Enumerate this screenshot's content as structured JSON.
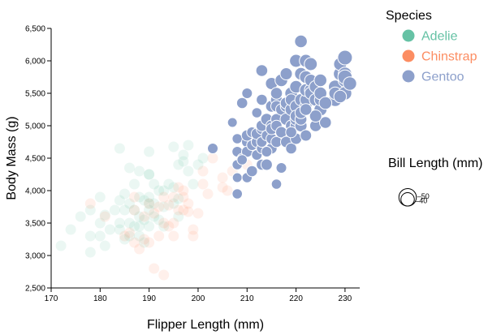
{
  "chart_data": {
    "type": "scatter",
    "xlabel": "Flipper Length (mm)",
    "ylabel": "Body Mass (g)",
    "xlim": [
      170,
      233
    ],
    "ylim": [
      2500,
      6500
    ],
    "xticks": [
      "170",
      "180",
      "190",
      "200",
      "210",
      "220",
      "230"
    ],
    "yticks": [
      "2,500",
      "3,000",
      "3,500",
      "4,000",
      "4,500",
      "5,000",
      "5,500",
      "6,000",
      "6,500"
    ],
    "legend": {
      "title": "Species",
      "placement": "top-right",
      "items": [
        {
          "label": "Adelie",
          "color": "#66c2a5"
        },
        {
          "label": "Chinstrap",
          "color": "#fc8d62"
        },
        {
          "label": "Gentoo",
          "color": "#8da0cb"
        }
      ]
    },
    "size_legend": {
      "title": "Bill Length (mm)",
      "values": [
        50,
        40
      ],
      "labels": [
        "50",
        "40"
      ]
    },
    "highlighted_series": "Gentoo",
    "series": [
      {
        "name": "Adelie",
        "color": "#66c2a5",
        "points": [
          [
            172,
            3150,
            37
          ],
          [
            174,
            3400,
            38
          ],
          [
            176,
            3600,
            38
          ],
          [
            178,
            3300,
            39
          ],
          [
            178,
            3050,
            37
          ],
          [
            178,
            3700,
            38
          ],
          [
            180,
            3900,
            40
          ],
          [
            180,
            3500,
            38
          ],
          [
            180,
            3300,
            37
          ],
          [
            181,
            3625,
            38
          ],
          [
            181,
            3150,
            37
          ],
          [
            182,
            3400,
            39
          ],
          [
            183,
            3700,
            37
          ],
          [
            184,
            3850,
            40
          ],
          [
            184,
            3500,
            39
          ],
          [
            184,
            4650,
            38
          ],
          [
            185,
            3700,
            40
          ],
          [
            185,
            3950,
            39
          ],
          [
            185,
            3250,
            36
          ],
          [
            186,
            3800,
            41
          ],
          [
            186,
            3500,
            38
          ],
          [
            186,
            4350,
            40
          ],
          [
            186,
            3300,
            39
          ],
          [
            187,
            4100,
            40
          ],
          [
            187,
            3700,
            38
          ],
          [
            187,
            3450,
            39
          ],
          [
            188,
            3600,
            38
          ],
          [
            188,
            3900,
            41
          ],
          [
            188,
            3300,
            38
          ],
          [
            188,
            3450,
            39
          ],
          [
            189,
            3550,
            38
          ],
          [
            189,
            3850,
            40
          ],
          [
            189,
            3200,
            37
          ],
          [
            190,
            3900,
            40
          ],
          [
            190,
            4250,
            41
          ],
          [
            190,
            3800,
            40
          ],
          [
            190,
            3450,
            37
          ],
          [
            190,
            4600,
            39
          ],
          [
            190,
            3700,
            38
          ],
          [
            190,
            4250,
            37
          ],
          [
            191,
            3800,
            39
          ],
          [
            191,
            4100,
            40
          ],
          [
            191,
            3600,
            39
          ],
          [
            192,
            4000,
            40
          ],
          [
            192,
            3550,
            38
          ],
          [
            193,
            3750,
            39
          ],
          [
            193,
            4000,
            41
          ],
          [
            194,
            4100,
            39
          ],
          [
            195,
            4050,
            40
          ],
          [
            195,
            3800,
            39
          ],
          [
            195,
            4675,
            42
          ],
          [
            196,
            3875,
            41
          ],
          [
            196,
            4400,
            39
          ],
          [
            197,
            4450,
            40
          ],
          [
            197,
            4550,
            41
          ],
          [
            198,
            4300,
            40
          ],
          [
            198,
            4700,
            41
          ],
          [
            199,
            4100,
            41
          ],
          [
            200,
            4400,
            40
          ],
          [
            201,
            4500,
            40
          ],
          [
            196,
            3600,
            39
          ],
          [
            184,
            3400,
            37
          ],
          [
            188,
            4300,
            38
          ],
          [
            193,
            3450,
            39
          ]
        ]
      },
      {
        "name": "Chinstrap",
        "color": "#fc8d62",
        "points": [
          [
            178,
            3800,
            46
          ],
          [
            181,
            3600,
            47
          ],
          [
            185,
            3300,
            46
          ],
          [
            186,
            3350,
            46
          ],
          [
            187,
            3900,
            47
          ],
          [
            187,
            3200,
            46
          ],
          [
            187,
            3700,
            48
          ],
          [
            188,
            3100,
            46
          ],
          [
            189,
            3600,
            49
          ],
          [
            190,
            3800,
            46
          ],
          [
            190,
            3200,
            47
          ],
          [
            191,
            3650,
            50
          ],
          [
            191,
            2800,
            46
          ],
          [
            192,
            3750,
            49
          ],
          [
            192,
            3300,
            47
          ],
          [
            193,
            3900,
            50
          ],
          [
            193,
            3500,
            51
          ],
          [
            194,
            3775,
            48
          ],
          [
            195,
            3900,
            50
          ],
          [
            195,
            3500,
            49
          ],
          [
            195,
            3300,
            47
          ],
          [
            196,
            4050,
            51
          ],
          [
            196,
            3700,
            49
          ],
          [
            197,
            3900,
            50
          ],
          [
            197,
            3700,
            51
          ],
          [
            197,
            4000,
            48
          ],
          [
            198,
            3675,
            50
          ],
          [
            198,
            3800,
            50
          ],
          [
            199,
            3400,
            49
          ],
          [
            200,
            3650,
            47
          ],
          [
            201,
            4300,
            50
          ],
          [
            201,
            4100,
            52
          ],
          [
            202,
            3950,
            51
          ],
          [
            203,
            4500,
            52
          ],
          [
            205,
            4050,
            51
          ],
          [
            205,
            4200,
            52
          ],
          [
            206,
            4000,
            51
          ],
          [
            207,
            4300,
            50
          ],
          [
            210,
            4400,
            52
          ],
          [
            212,
            4800,
            55
          ],
          [
            193,
            2700,
            47
          ],
          [
            189,
            3250,
            46
          ],
          [
            194,
            3450,
            48
          ],
          [
            199,
            3300,
            49
          ]
        ]
      },
      {
        "name": "Gentoo",
        "color": "#8da0cb",
        "points": [
          [
            203,
            4650,
            45
          ],
          [
            207,
            5050,
            43
          ],
          [
            208,
            3950,
            44
          ],
          [
            208,
            4200,
            43
          ],
          [
            208,
            4400,
            44
          ],
          [
            208,
            4600,
            45
          ],
          [
            208,
            4800,
            44
          ],
          [
            209,
            5350,
            46
          ],
          [
            209,
            4500,
            43
          ],
          [
            210,
            5500,
            45
          ],
          [
            210,
            4750,
            46
          ],
          [
            210,
            4200,
            44
          ],
          [
            210,
            4600,
            46
          ],
          [
            210,
            4850,
            47
          ],
          [
            211,
            4700,
            45
          ],
          [
            211,
            4300,
            46
          ],
          [
            211,
            4900,
            45
          ],
          [
            212,
            4550,
            45
          ],
          [
            212,
            5200,
            44
          ],
          [
            212,
            4750,
            46
          ],
          [
            212,
            4875,
            47
          ],
          [
            213,
            4650,
            45
          ],
          [
            213,
            4950,
            46
          ],
          [
            213,
            5400,
            46
          ],
          [
            213,
            5850,
            48
          ],
          [
            213,
            4400,
            46
          ],
          [
            213,
            5000,
            47
          ],
          [
            213,
            4750,
            45
          ],
          [
            214,
            4400,
            47
          ],
          [
            214,
            4850,
            45
          ],
          [
            214,
            5100,
            48
          ],
          [
            215,
            5000,
            47
          ],
          [
            215,
            4650,
            46
          ],
          [
            215,
            5300,
            48
          ],
          [
            215,
            4800,
            46
          ],
          [
            215,
            4950,
            47
          ],
          [
            215,
            5650,
            49
          ],
          [
            216,
            5100,
            47
          ],
          [
            216,
            4750,
            46
          ],
          [
            216,
            4100,
            44
          ],
          [
            216,
            5400,
            48
          ],
          [
            216,
            5300,
            47
          ],
          [
            216,
            5000,
            46
          ],
          [
            216,
            5500,
            48
          ],
          [
            217,
            4900,
            46
          ],
          [
            217,
            5250,
            47
          ],
          [
            217,
            5700,
            50
          ],
          [
            217,
            4350,
            45
          ],
          [
            217,
            4900,
            47
          ],
          [
            218,
            5300,
            48
          ],
          [
            218,
            4750,
            47
          ],
          [
            218,
            5100,
            49
          ],
          [
            218,
            5800,
            49
          ],
          [
            218,
            5350,
            48
          ],
          [
            219,
            5000,
            47
          ],
          [
            219,
            5500,
            50
          ],
          [
            219,
            5250,
            49
          ],
          [
            219,
            5400,
            48
          ],
          [
            219,
            4650,
            46
          ],
          [
            220,
            5300,
            49
          ],
          [
            220,
            5000,
            48
          ],
          [
            220,
            5100,
            49
          ],
          [
            220,
            5600,
            50
          ],
          [
            220,
            4800,
            47
          ],
          [
            220,
            5150,
            48
          ],
          [
            220,
            6000,
            51
          ],
          [
            221,
            5000,
            49
          ],
          [
            221,
            5100,
            48
          ],
          [
            221,
            5400,
            49
          ],
          [
            221,
            5200,
            48
          ],
          [
            221,
            6300,
            50
          ],
          [
            221,
            5800,
            50
          ],
          [
            222,
            5750,
            50
          ],
          [
            222,
            6000,
            51
          ],
          [
            222,
            5300,
            49
          ],
          [
            222,
            4850,
            47
          ],
          [
            222,
            5400,
            48
          ],
          [
            222,
            5550,
            50
          ],
          [
            223,
            5550,
            50
          ],
          [
            223,
            5500,
            49
          ],
          [
            223,
            5950,
            51
          ],
          [
            223,
            5700,
            49
          ],
          [
            224,
            5400,
            50
          ],
          [
            224,
            5000,
            48
          ],
          [
            224,
            5600,
            50
          ],
          [
            225,
            5700,
            50
          ],
          [
            225,
            5250,
            51
          ],
          [
            225,
            5400,
            49
          ],
          [
            225,
            5500,
            50
          ],
          [
            226,
            5050,
            48
          ],
          [
            228,
            5600,
            52
          ],
          [
            228,
            5400,
            52
          ],
          [
            228,
            5500,
            50
          ],
          [
            229,
            5800,
            52
          ],
          [
            229,
            5950,
            51
          ],
          [
            230,
            6050,
            55
          ],
          [
            230,
            5800,
            52
          ],
          [
            230,
            5700,
            53
          ],
          [
            230,
            5500,
            52
          ],
          [
            230,
            5750,
            54
          ],
          [
            231,
            5650,
            52
          ],
          [
            229,
            5450,
            50
          ],
          [
            226,
            5350,
            50
          ],
          [
            224,
            5150,
            49
          ],
          [
            222,
            5250,
            48
          ],
          [
            214,
            4600,
            45
          ],
          [
            209,
            4475,
            44
          ],
          [
            219,
            4900,
            46
          ]
        ]
      }
    ]
  }
}
